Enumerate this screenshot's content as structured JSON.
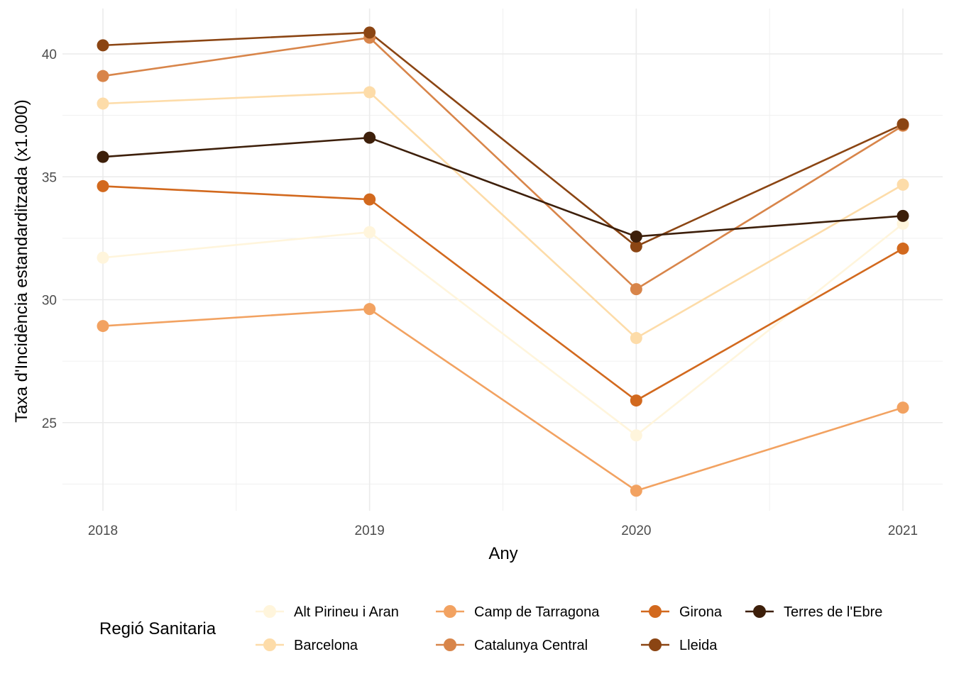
{
  "chart_data": {
    "type": "line",
    "title": "",
    "xlabel": "Any",
    "ylabel": "Taxa d'Incidència estandarditzada (x1.000)",
    "x": [
      "2018",
      "2019",
      "2020",
      "2021"
    ],
    "yticks": [
      25,
      30,
      35,
      40
    ],
    "ylim": [
      21.3,
      41.8
    ],
    "grid": true,
    "legend_title": "Regió Sanitaria",
    "legend_position": "bottom",
    "series": [
      {
        "name": "Alt Pirineu i Aran",
        "color": "#FFF5DC",
        "values": [
          31.71,
          32.75,
          24.48,
          33.09
        ]
      },
      {
        "name": "Barcelona",
        "color": "#FDDCA9",
        "values": [
          37.98,
          38.44,
          28.44,
          34.68
        ]
      },
      {
        "name": "Camp de Tarragona",
        "color": "#F2A261",
        "values": [
          28.93,
          29.62,
          22.23,
          25.61
        ]
      },
      {
        "name": "Catalunya Central",
        "color": "#D8854A",
        "values": [
          39.1,
          40.66,
          30.43,
          37.08
        ]
      },
      {
        "name": "Girona",
        "color": "#D2691E",
        "values": [
          34.62,
          34.08,
          25.9,
          32.08
        ]
      },
      {
        "name": "Lleida",
        "color": "#8B4513",
        "values": [
          40.35,
          40.87,
          32.17,
          37.14
        ]
      },
      {
        "name": "Terres de l'Ebre",
        "color": "#3D1F0A",
        "values": [
          35.81,
          36.59,
          32.57,
          33.41
        ]
      }
    ]
  }
}
